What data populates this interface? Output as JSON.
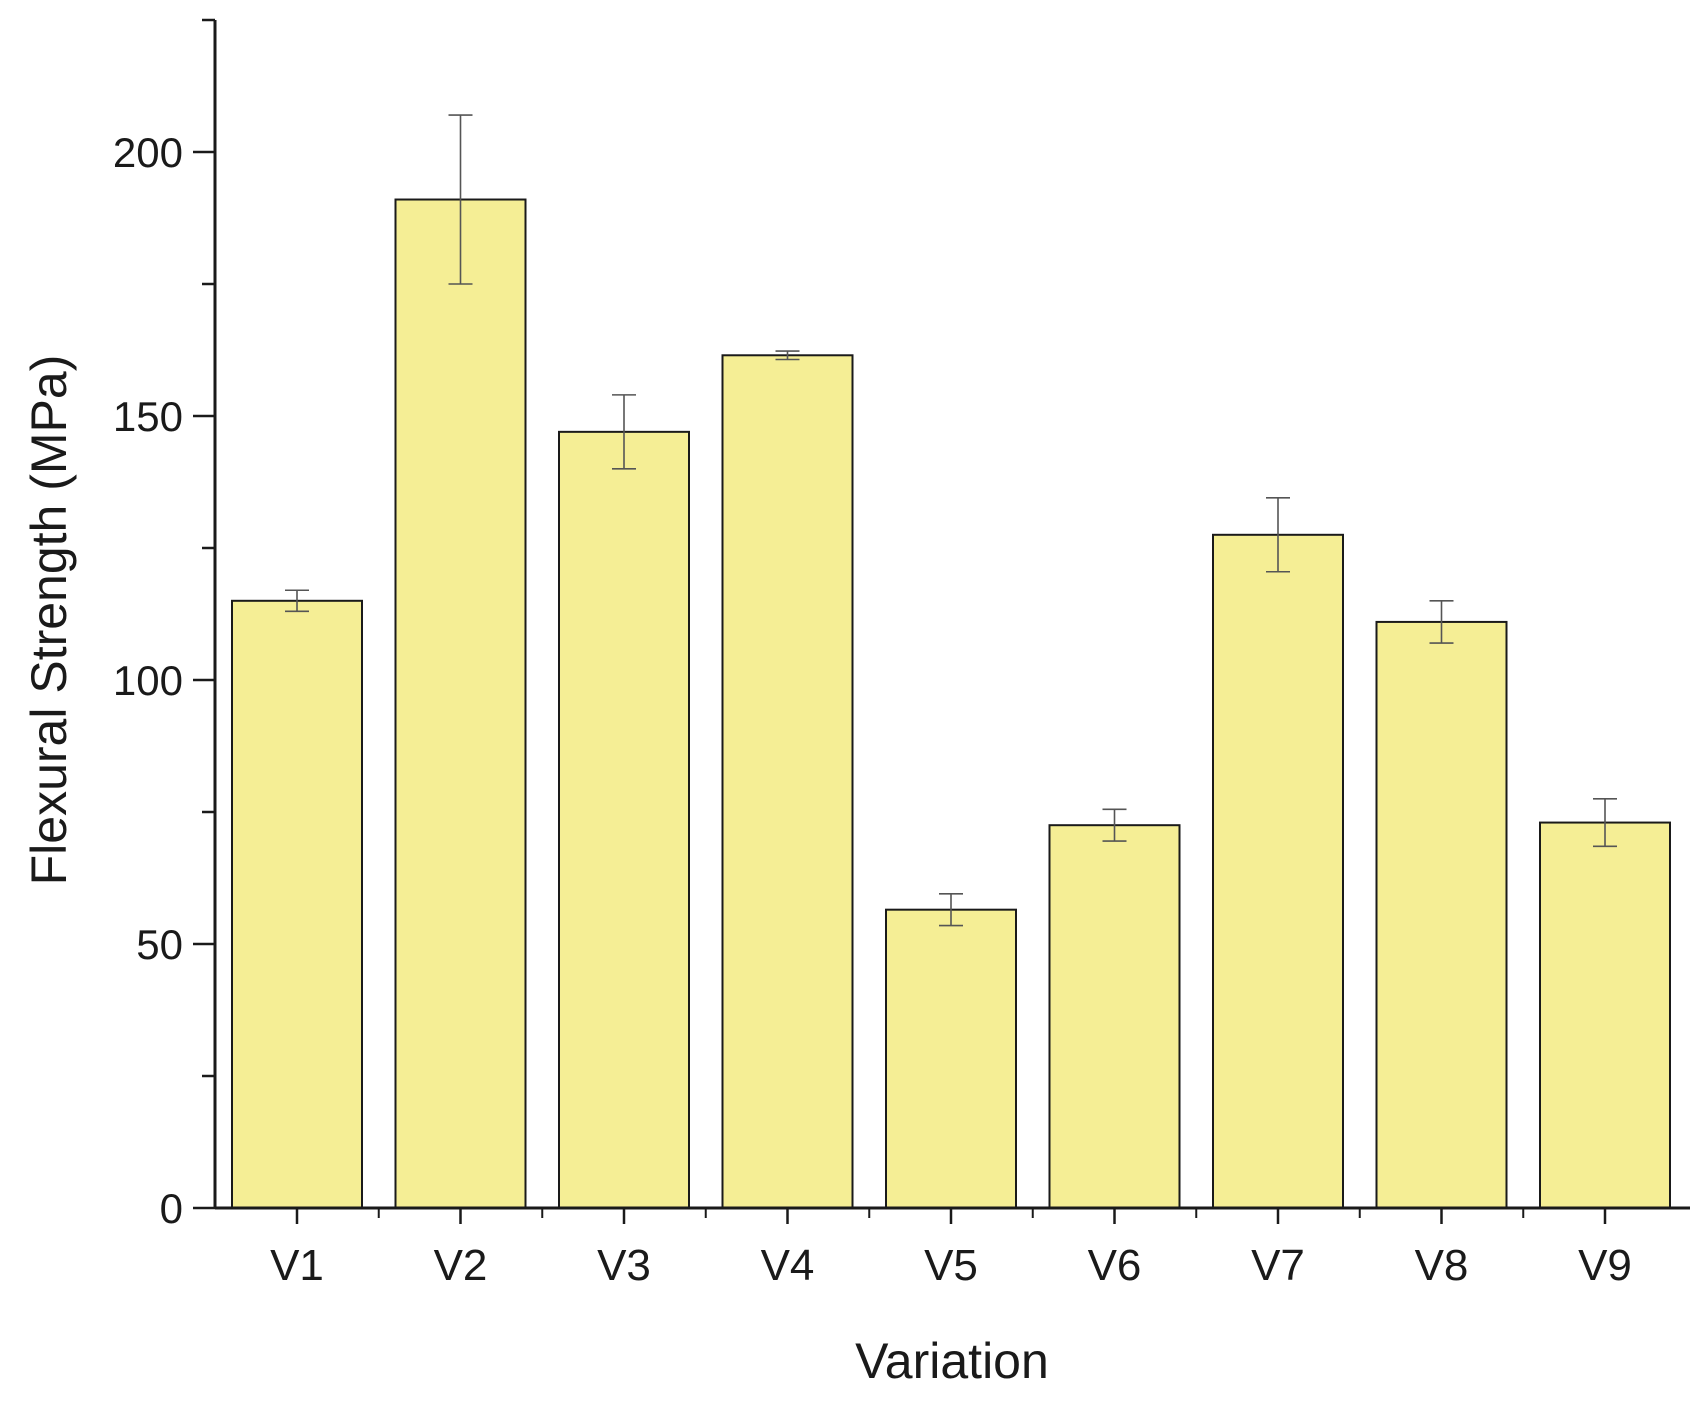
{
  "chart_data": {
    "type": "bar",
    "title": "",
    "xlabel": "Variation",
    "ylabel": "Flexural Strength (MPa)",
    "categories": [
      "V1",
      "V2",
      "V3",
      "V4",
      "V5",
      "V6",
      "V7",
      "V8",
      "V9"
    ],
    "values": [
      115,
      191,
      147,
      161.5,
      56.5,
      72.5,
      127.5,
      111,
      73
    ],
    "errors": [
      2,
      16,
      7,
      0.8,
      3,
      3,
      7,
      4,
      4.5
    ],
    "ylim": [
      0,
      225
    ],
    "yticks": [
      0,
      50,
      100,
      150,
      200
    ],
    "ytick_labels": [
      "0",
      "50",
      "100",
      "150",
      "200"
    ],
    "minor_ytick_step": 25,
    "grid": false,
    "legend": "none",
    "bar_color": "#f5ee95",
    "bar_edge_color": "#1a1a1a",
    "error_bar_color": "#555555"
  }
}
